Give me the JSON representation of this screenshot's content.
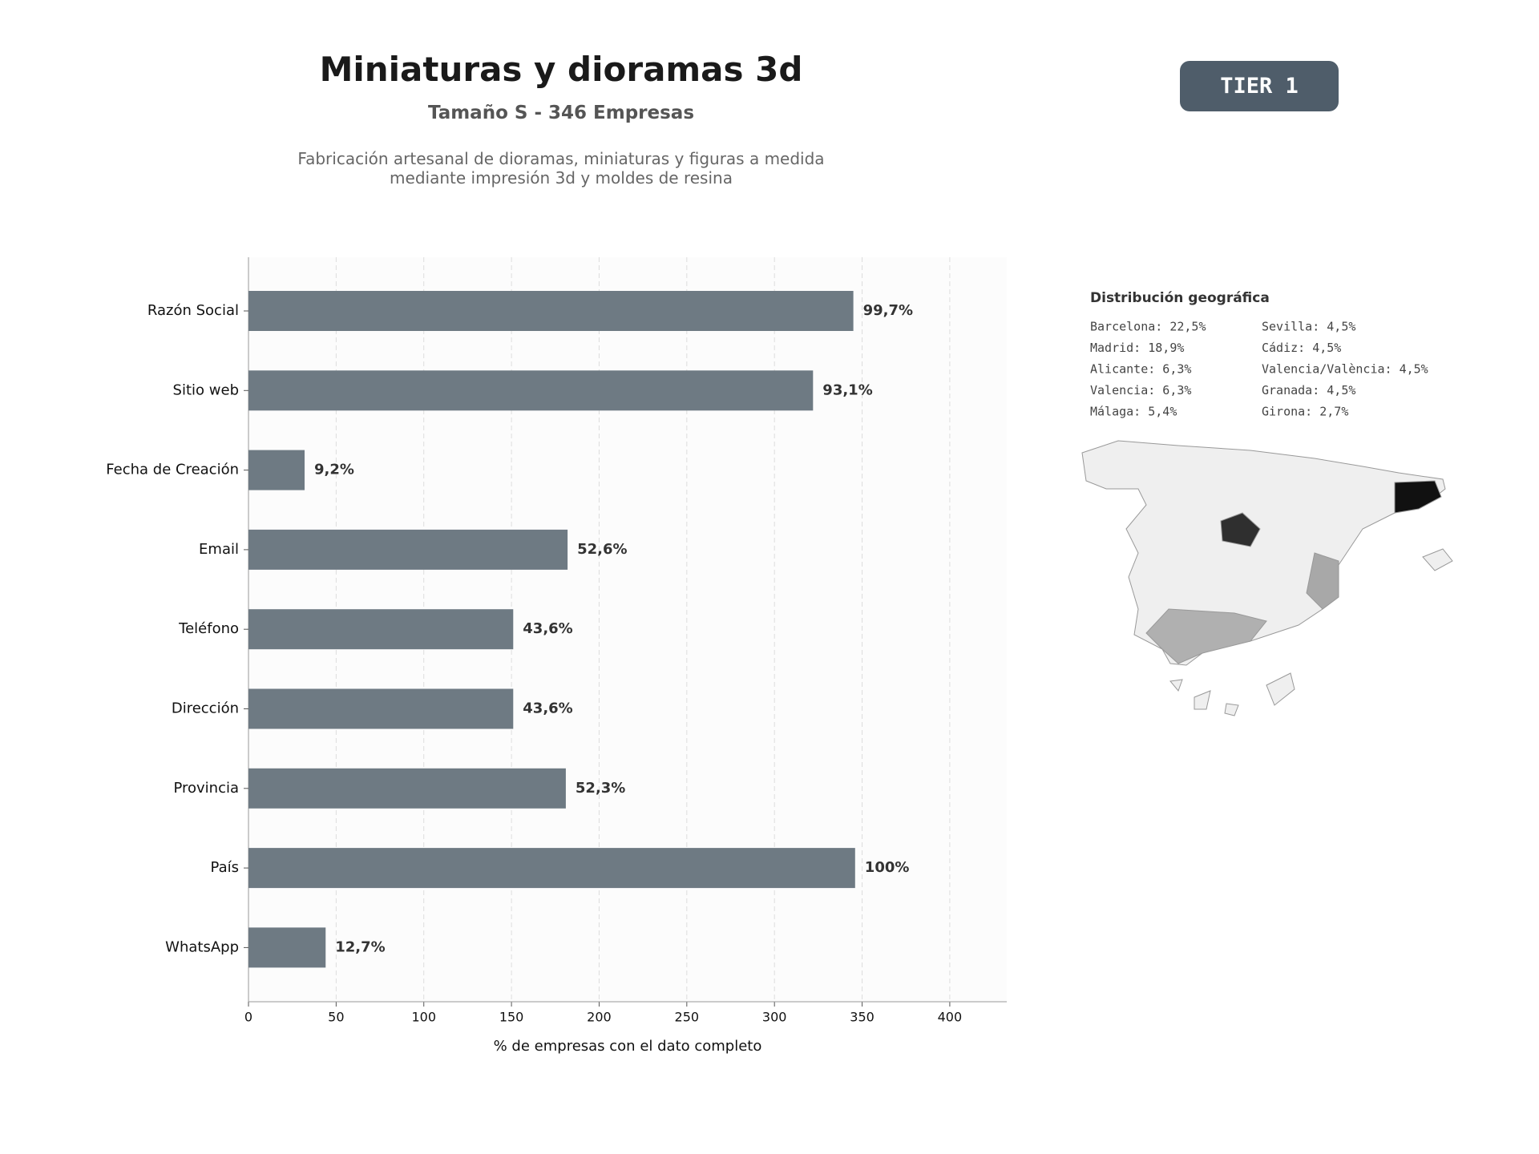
{
  "chart_data": {
    "type": "barh",
    "title": "Miniaturas y dioramas 3d",
    "subtitle": "Tamaño S - 346 Empresas",
    "description": [
      "Fabricación artesanal de dioramas, miniaturas y figuras a medida",
      "mediante impresión 3d y moldes de resina"
    ],
    "categories": [
      "Razón Social",
      "Sitio web",
      "Fecha de Creación",
      "Email",
      "Teléfono",
      "Dirección",
      "Provincia",
      "País",
      "WhatsApp"
    ],
    "values": [
      345,
      322,
      32,
      182,
      151,
      151,
      181,
      346,
      44
    ],
    "value_labels": [
      "99,7%",
      "93,1%",
      "9,2%",
      "52,6%",
      "43,6%",
      "43,6%",
      "52,3%",
      "100%",
      "12,7%"
    ],
    "color": "#6e7a83",
    "xlim": [
      0,
      432.5
    ],
    "xticks": [
      0,
      50,
      100,
      150,
      200,
      250,
      300,
      350,
      400
    ],
    "xlabel": "% de empresas con el dato completo",
    "grid": true
  },
  "badge": "TIER 1",
  "geo": {
    "title": "Distribución geográfica",
    "items": [
      [
        "Barcelona: 22,5%",
        "Madrid: 18,9%",
        "Alicante: 6,3%",
        "Valencia: 6,3%",
        "Málaga: 5,4%"
      ],
      [
        "Sevilla: 4,5%",
        "Cádiz: 4,5%",
        "Valencia/València: 4,5%",
        "Granada: 4,5%",
        "Girona: 2,7%"
      ]
    ]
  }
}
